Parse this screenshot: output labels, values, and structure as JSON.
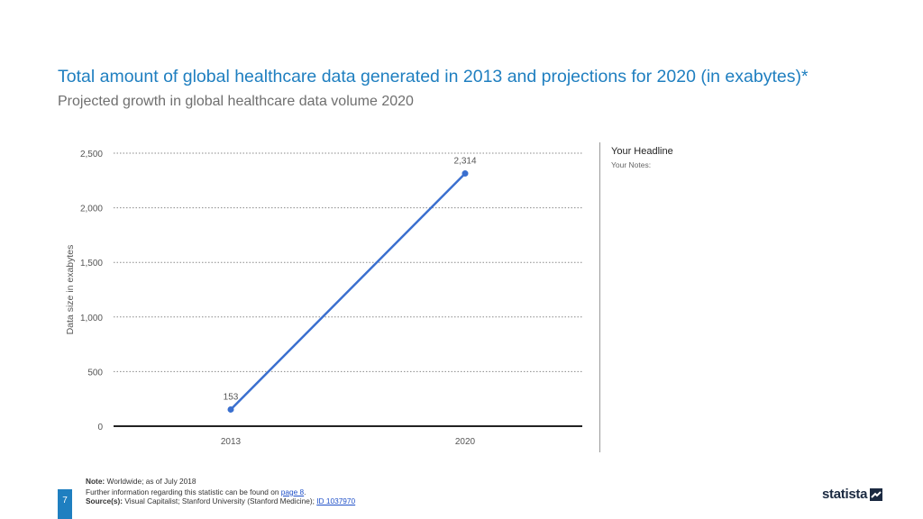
{
  "header": {
    "title": "Total amount of global healthcare data generated in 2013 and projections for 2020 (in exabytes)*",
    "subtitle": "Projected growth in global healthcare data volume 2020"
  },
  "notes": {
    "headline": "Your Headline",
    "body": "Your Notes:"
  },
  "footer": {
    "note_label": "Note:",
    "note_text": "Worldwide; as of July 2018",
    "further_text": "Further information regarding this statistic can be found on",
    "further_link": "page 8",
    "source_label": "Source(s):",
    "source_text": "Visual Capitalist; Stanford University (Stanford Medicine);",
    "source_link": "ID 1037970",
    "page_number": "7",
    "logo": "statista"
  },
  "colors": {
    "accent": "#1f7fc0",
    "line": "#3a6fcf"
  },
  "chart_data": {
    "type": "line",
    "x": [
      "2013",
      "2020"
    ],
    "series": [
      {
        "values": [
          153,
          2314
        ],
        "labels": [
          "153",
          "2,314"
        ]
      }
    ],
    "ylabel": "Data size in exabytes",
    "xlabel": "",
    "ylim": [
      0,
      2500
    ],
    "yticks": [
      0,
      500,
      1000,
      1500,
      2000,
      2500
    ],
    "ytick_labels": [
      "0",
      "500",
      "1,000",
      "1,500",
      "2,000",
      "2,500"
    ],
    "grid": true,
    "legend": "none"
  }
}
